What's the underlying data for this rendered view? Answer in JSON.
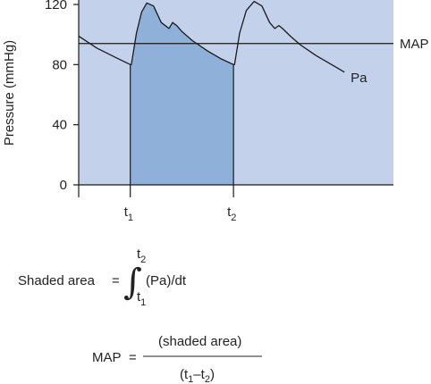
{
  "chart_data": {
    "type": "line",
    "title": "",
    "ylabel": "Pressure (mmHg)",
    "xlabel": "",
    "ylim": [
      0,
      120
    ],
    "xlim": [
      0,
      6.1
    ],
    "yticks": [
      "0",
      "40",
      "80",
      "120"
    ],
    "xticks": [
      {
        "x": 1,
        "base": "t",
        "sub": "1"
      },
      {
        "x": 3,
        "base": "t",
        "sub": "2"
      }
    ],
    "series": [
      {
        "name": "Pa",
        "x": [
          0,
          0.35,
          0.7,
          1.0,
          1.02,
          1.12,
          1.22,
          1.32,
          1.45,
          1.6,
          1.75,
          1.82,
          1.9,
          2.0,
          2.2,
          2.5,
          2.75,
          3.0,
          3.02,
          3.12,
          3.25,
          3.4,
          3.55,
          3.7,
          3.8,
          3.88,
          3.95,
          4.1,
          4.3,
          4.6,
          4.9,
          5.15
        ],
        "y": [
          99,
          91,
          85,
          80,
          80,
          101,
          115,
          121,
          119,
          108,
          104,
          108,
          106,
          102,
          96,
          89,
          84,
          80,
          80,
          101,
          116,
          122,
          119,
          108,
          104,
          106,
          104,
          99,
          93,
          86,
          80,
          75
        ]
      }
    ],
    "mean_line": {
      "label": "MAP",
      "y": 94
    },
    "series_label": "Pa",
    "shaded_interval": [
      1,
      3
    ],
    "grid": false
  },
  "equations": {
    "area_label": "Shaded area",
    "equals": "=",
    "integral_sign": "∫",
    "upper_limit_base": "t",
    "upper_limit_sub": "2",
    "lower_limit_base": "t",
    "lower_limit_sub": "1",
    "integrand": "(Pa)/dt",
    "map_label": "MAP",
    "map_equals": "=",
    "numerator": "(shaded area)",
    "denom_open": "(t",
    "denom_sub1": "1",
    "denom_minus": "–t",
    "denom_sub2": "2",
    "denom_close": ")"
  },
  "colors": {
    "plot_background": "#c3d2ea",
    "shaded_area": "#8fb0d9",
    "line": "#1a1a1a"
  }
}
